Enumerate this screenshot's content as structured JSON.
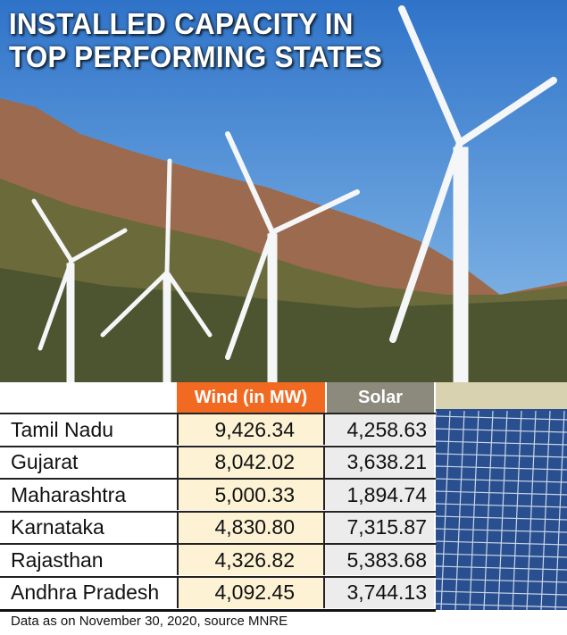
{
  "title": [
    "INSTALLED CAPACITY IN",
    "TOP PERFORMING STATES"
  ],
  "colors": {
    "wind_header": "#f26a22",
    "solar_header": "#8b8a7c",
    "wind_cells": "#fdf2d4",
    "solar_cells": "#ececec"
  },
  "chart_data": {
    "type": "table",
    "title": "INSTALLED CAPACITY IN TOP PERFORMING STATES",
    "columns": [
      "",
      "Wind (in MW)",
      "Solar"
    ],
    "rows": [
      {
        "state": "Tamil Nadu",
        "wind": "9,426.34",
        "solar": "4,258.63"
      },
      {
        "state": "Gujarat",
        "wind": "8,042.02",
        "solar": "3,638.21"
      },
      {
        "state": "Maharashtra",
        "wind": "5,000.33",
        "solar": "1,894.74"
      },
      {
        "state": "Karnataka",
        "wind": "4,830.80",
        "solar": "7,315.87"
      },
      {
        "state": "Rajasthan",
        "wind": "4,326.82",
        "solar": "5,383.68"
      },
      {
        "state": "Andhra Pradesh",
        "wind": "4,092.45",
        "solar": "3,744.13"
      }
    ],
    "note": "Data as on November 30, 2020, source MNRE"
  }
}
